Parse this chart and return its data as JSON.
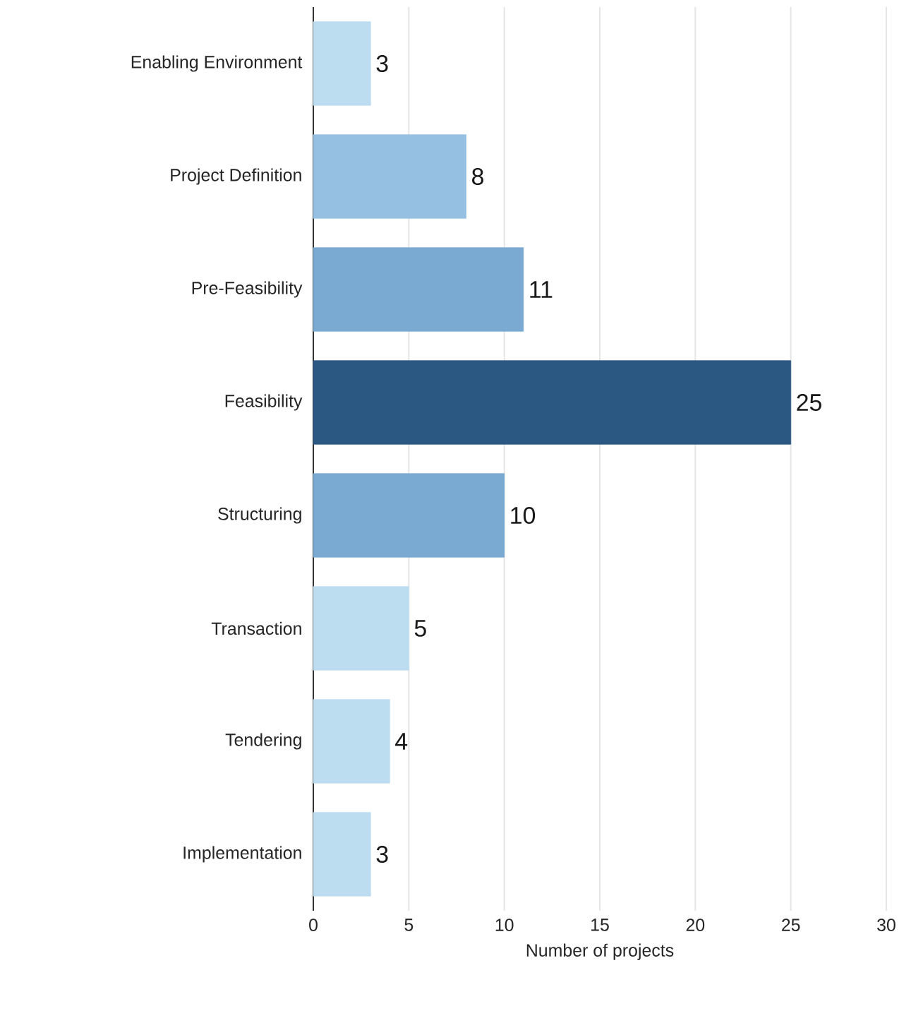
{
  "chart_data": {
    "type": "bar",
    "orientation": "horizontal",
    "categories": [
      "Enabling Environment",
      "Project Definition",
      "Pre-Feasibility",
      "Feasibility",
      "Structuring",
      "Transaction",
      "Tendering",
      "Implementation"
    ],
    "values": [
      3,
      8,
      11,
      25,
      10,
      5,
      4,
      3
    ],
    "colors": [
      "#bcdcf0",
      "#96c0e2",
      "#7aaad2",
      "#2b5783",
      "#7aaad2",
      "#bcdcf0",
      "#bcdcf0",
      "#bcdcf0"
    ],
    "xlim": [
      0,
      30
    ],
    "xticks": [
      0,
      5,
      10,
      15,
      20,
      25,
      30
    ],
    "xlabel": "Number of projects",
    "grid": "x",
    "data_labels": true
  }
}
